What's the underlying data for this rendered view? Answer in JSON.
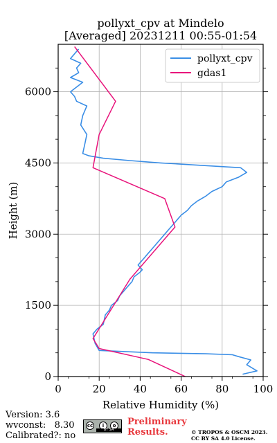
{
  "chart_data": {
    "type": "line",
    "title": "pollyxt_cpv at Mindelo",
    "subtitle": "[Averaged] 20231211 00:55-01:54",
    "xlabel": "Relative Humidity (%)",
    "ylabel": "Height (m)",
    "xlim": [
      0,
      100
    ],
    "ylim": [
      0,
      7000
    ],
    "xticks": [
      "0",
      "20",
      "40",
      "60",
      "80",
      "100"
    ],
    "yticks": [
      "0",
      "1500",
      "3000",
      "4500",
      "6000"
    ],
    "grid": true,
    "legend_position": "top-right",
    "series": [
      {
        "name": "pollyxt_cpv",
        "color": "#3a8ee6",
        "x": [
          90,
          97,
          92,
          94,
          88,
          85,
          72,
          46,
          20,
          18,
          17,
          19,
          22,
          23,
          25,
          26,
          29,
          30,
          32,
          34,
          36,
          37,
          40,
          41,
          39,
          42,
          44,
          46,
          48,
          50,
          52,
          54,
          56,
          58,
          60,
          63,
          65,
          68,
          72,
          75,
          80,
          82,
          88,
          92,
          89,
          70,
          50,
          35,
          22,
          15,
          12,
          13,
          14,
          11,
          12,
          14,
          9,
          8,
          6,
          9,
          12,
          6,
          10,
          9,
          11,
          6,
          8,
          10
        ],
        "y": [
          50,
          120,
          250,
          350,
          420,
          460,
          480,
          500,
          550,
          700,
          900,
          1000,
          1100,
          1300,
          1400,
          1500,
          1600,
          1700,
          1800,
          1900,
          2000,
          2100,
          2200,
          2250,
          2350,
          2500,
          2600,
          2700,
          2800,
          2900,
          3000,
          3100,
          3200,
          3300,
          3400,
          3500,
          3600,
          3700,
          3800,
          3900,
          4000,
          4100,
          4200,
          4300,
          4400,
          4450,
          4500,
          4550,
          4600,
          4650,
          4700,
          4900,
          5100,
          5300,
          5500,
          5700,
          5800,
          5900,
          6000,
          6100,
          6200,
          6300,
          6400,
          6500,
          6600,
          6700,
          6800,
          6900
        ]
      },
      {
        "name": "gdas1",
        "color": "#e8137b",
        "x": [
          62,
          44,
          20,
          17,
          35,
          57,
          52,
          17,
          20,
          28,
          8
        ],
        "y": [
          0,
          360,
          590,
          800,
          2050,
          3150,
          3750,
          4400,
          5100,
          5800,
          6950
        ]
      }
    ]
  },
  "footer": {
    "version": "Version: 3.6",
    "wvconst": "wvconst:   8.30",
    "calibrated": "Calibrated?: no",
    "cc_badge": "BY SA",
    "preliminary_line1": "Preliminary",
    "preliminary_line2": "Results.",
    "copyright_line1": "© TROPOS & OSCM 2023.",
    "copyright_line2": "CC BY SA 4.0 License."
  }
}
